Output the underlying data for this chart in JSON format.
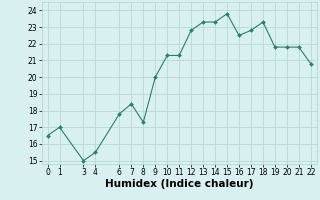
{
  "x": [
    0,
    1,
    3,
    4,
    6,
    7,
    8,
    9,
    10,
    11,
    12,
    13,
    14,
    15,
    16,
    17,
    18,
    19,
    20,
    21,
    22
  ],
  "y": [
    16.5,
    17.0,
    15.0,
    15.5,
    17.8,
    18.4,
    17.3,
    20.0,
    21.3,
    21.3,
    22.8,
    23.3,
    23.3,
    23.8,
    22.5,
    22.8,
    23.3,
    21.8,
    21.8,
    21.8,
    20.8
  ],
  "line_color": "#2d7d6f",
  "marker": "D",
  "marker_size": 2.0,
  "bg_color": "#d8f0f0",
  "grid_color": "#b8d8d8",
  "xlabel": "Humidex (Indice chaleur)",
  "xlim": [
    -0.5,
    22.5
  ],
  "ylim": [
    14.8,
    24.5
  ],
  "yticks": [
    15,
    16,
    17,
    18,
    19,
    20,
    21,
    22,
    23,
    24
  ],
  "xticks": [
    0,
    1,
    3,
    4,
    6,
    7,
    8,
    9,
    10,
    11,
    12,
    13,
    14,
    15,
    16,
    17,
    18,
    19,
    20,
    21,
    22
  ],
  "tick_fontsize": 5.5,
  "xlabel_fontsize": 7.5
}
